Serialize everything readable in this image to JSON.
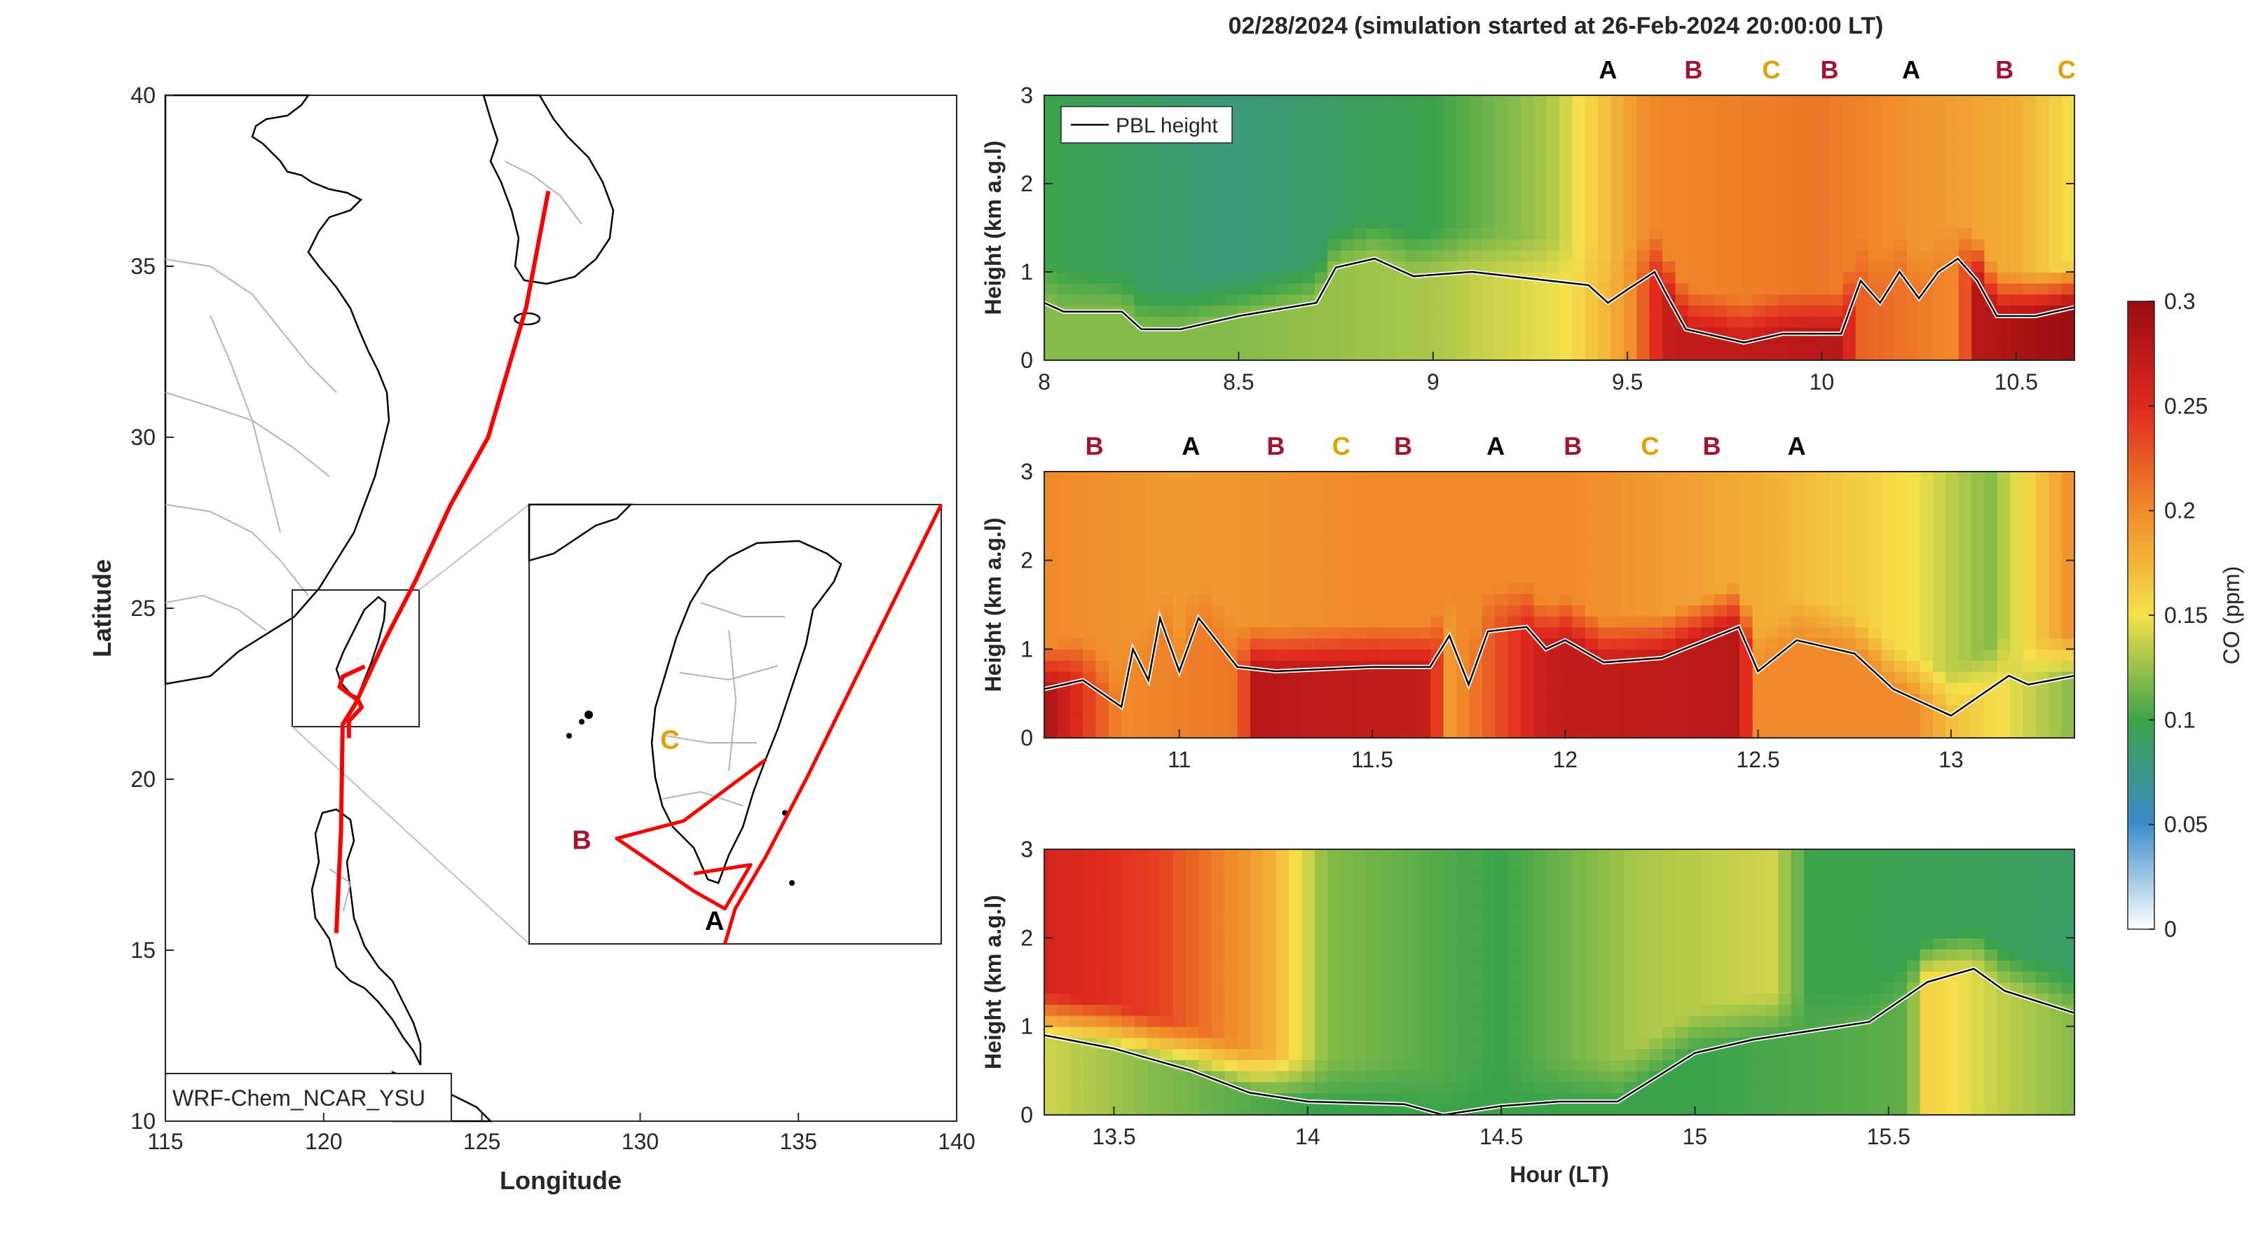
{
  "figure": {
    "title": "02/28/2024 (simulation started at 26-Feb-2024 20:00:00 LT)"
  },
  "map": {
    "xlabel": "Longitude",
    "ylabel": "Latitude",
    "xticks": [
      115,
      120,
      125,
      130,
      135,
      140
    ],
    "yticks": [
      10,
      15,
      20,
      25,
      30,
      35,
      40
    ],
    "xlim": [
      115,
      140
    ],
    "ylim": [
      10,
      40
    ],
    "model_label": "WRF-Chem_NCAR_YSU",
    "inset_lon": [
      119,
      123
    ],
    "inset_lat": [
      21.5,
      26.5
    ],
    "track_color": "#ff0000",
    "track": [
      [
        127.1,
        37.2
      ],
      [
        126.4,
        33.8
      ],
      [
        125.2,
        30.0
      ],
      [
        124.0,
        28.0
      ],
      [
        122.9,
        25.8
      ],
      [
        121.9,
        24.0
      ],
      [
        121.0,
        22.2
      ],
      [
        120.6,
        21.6
      ],
      [
        120.55,
        18.5
      ],
      [
        120.4,
        15.5
      ]
    ],
    "track_taiwan": [
      [
        121.3,
        23.3
      ],
      [
        120.6,
        23.0
      ],
      [
        120.5,
        22.7
      ],
      [
        121.1,
        22.3
      ],
      [
        121.2,
        22.1
      ],
      [
        120.8,
        21.7
      ],
      [
        120.8,
        21.2
      ]
    ],
    "inset_points": [
      {
        "label": "A",
        "lon": 120.8,
        "lat": 22.1,
        "color": "#000000"
      },
      {
        "label": "B",
        "lon": 119.85,
        "lat": 22.7,
        "color": "#a2142f"
      },
      {
        "label": "C",
        "lon": 120.4,
        "lat": 23.6,
        "color": "#e0a000"
      }
    ]
  },
  "colorbar": {
    "label": "CO (ppm)",
    "ticks": [
      0,
      0.05,
      0.1,
      0.15,
      0.2,
      0.25,
      0.3
    ],
    "range": [
      0,
      0.3
    ],
    "colors": [
      "#ffffff",
      "#3a8cc8",
      "#3aa24a",
      "#f5e14a",
      "#f08a2a",
      "#e02a1e",
      "#9a0c12"
    ]
  },
  "chart_data": [
    {
      "type": "heatmap",
      "title": "",
      "xlabel": "",
      "ylabel": "Height (km a.g.l)",
      "xlim": [
        8,
        10.65
      ],
      "ylim": [
        0,
        3
      ],
      "xticks": [
        8,
        8.5,
        9,
        9.5,
        10,
        10.5
      ],
      "yticks": [
        0,
        1,
        2,
        3
      ],
      "legend": "PBL height",
      "legend_position": "top-left",
      "markers": [
        {
          "label": "A",
          "x": 9.45
        },
        {
          "label": "B",
          "x": 9.67
        },
        {
          "label": "C",
          "x": 9.87
        },
        {
          "label": "B",
          "x": 10.02
        },
        {
          "label": "A",
          "x": 10.23
        },
        {
          "label": "B",
          "x": 10.47
        },
        {
          "label": "C",
          "x": 10.63
        }
      ],
      "surface_co": [
        [
          8.0,
          0.12
        ],
        [
          8.5,
          0.12
        ],
        [
          9.0,
          0.13
        ],
        [
          9.35,
          0.15
        ],
        [
          9.5,
          0.19
        ],
        [
          9.6,
          0.27
        ],
        [
          10.05,
          0.28
        ],
        [
          10.1,
          0.22
        ],
        [
          10.35,
          0.2
        ],
        [
          10.4,
          0.28
        ],
        [
          10.65,
          0.3
        ]
      ],
      "aloft_co": [
        [
          8.0,
          0.1
        ],
        [
          8.5,
          0.08
        ],
        [
          9.0,
          0.1
        ],
        [
          9.3,
          0.13
        ],
        [
          9.45,
          0.17
        ],
        [
          9.55,
          0.2
        ],
        [
          10.0,
          0.21
        ],
        [
          10.3,
          0.19
        ],
        [
          10.5,
          0.18
        ],
        [
          10.65,
          0.15
        ]
      ],
      "pbl_height": [
        [
          8.0,
          0.65
        ],
        [
          8.05,
          0.55
        ],
        [
          8.2,
          0.55
        ],
        [
          8.25,
          0.35
        ],
        [
          8.35,
          0.35
        ],
        [
          8.5,
          0.5
        ],
        [
          8.7,
          0.65
        ],
        [
          8.75,
          1.05
        ],
        [
          8.85,
          1.15
        ],
        [
          8.95,
          0.95
        ],
        [
          9.1,
          1.0
        ],
        [
          9.3,
          0.9
        ],
        [
          9.4,
          0.85
        ],
        [
          9.45,
          0.65
        ],
        [
          9.5,
          0.8
        ],
        [
          9.57,
          1.0
        ],
        [
          9.6,
          0.75
        ],
        [
          9.65,
          0.35
        ],
        [
          9.75,
          0.25
        ],
        [
          9.8,
          0.2
        ],
        [
          9.9,
          0.3
        ],
        [
          10.05,
          0.3
        ],
        [
          10.1,
          0.9
        ],
        [
          10.15,
          0.65
        ],
        [
          10.2,
          1.0
        ],
        [
          10.25,
          0.7
        ],
        [
          10.3,
          1.0
        ],
        [
          10.35,
          1.15
        ],
        [
          10.4,
          0.9
        ],
        [
          10.45,
          0.5
        ],
        [
          10.55,
          0.5
        ],
        [
          10.65,
          0.6
        ]
      ]
    },
    {
      "type": "heatmap",
      "title": "",
      "xlabel": "",
      "ylabel": "Height (km a.g.l)",
      "xlim": [
        10.65,
        13.32
      ],
      "ylim": [
        0,
        3
      ],
      "xticks": [
        11,
        11.5,
        12,
        12.5,
        13
      ],
      "yticks": [
        0,
        1,
        2,
        3
      ],
      "markers": [
        {
          "label": "B",
          "x": 10.78
        },
        {
          "label": "A",
          "x": 11.03
        },
        {
          "label": "B",
          "x": 11.25
        },
        {
          "label": "C",
          "x": 11.42
        },
        {
          "label": "B",
          "x": 11.58
        },
        {
          "label": "A",
          "x": 11.82
        },
        {
          "label": "B",
          "x": 12.02
        },
        {
          "label": "C",
          "x": 12.22
        },
        {
          "label": "B",
          "x": 12.38
        },
        {
          "label": "A",
          "x": 12.6
        }
      ],
      "surface_co": [
        [
          10.65,
          0.29
        ],
        [
          10.85,
          0.2
        ],
        [
          11.15,
          0.21
        ],
        [
          11.2,
          0.28
        ],
        [
          11.65,
          0.27
        ],
        [
          11.7,
          0.19
        ],
        [
          11.95,
          0.27
        ],
        [
          12.45,
          0.28
        ],
        [
          12.5,
          0.2
        ],
        [
          12.9,
          0.2
        ],
        [
          13.0,
          0.17
        ],
        [
          13.32,
          0.12
        ]
      ],
      "aloft_co": [
        [
          10.65,
          0.2
        ],
        [
          11.0,
          0.19
        ],
        [
          11.5,
          0.2
        ],
        [
          12.0,
          0.2
        ],
        [
          12.5,
          0.18
        ],
        [
          12.9,
          0.15
        ],
        [
          13.1,
          0.12
        ],
        [
          13.32,
          0.2
        ]
      ],
      "pbl_height": [
        [
          10.65,
          0.55
        ],
        [
          10.75,
          0.65
        ],
        [
          10.85,
          0.35
        ],
        [
          10.88,
          1.0
        ],
        [
          10.92,
          0.65
        ],
        [
          10.95,
          1.35
        ],
        [
          11.0,
          0.75
        ],
        [
          11.05,
          1.35
        ],
        [
          11.15,
          0.8
        ],
        [
          11.25,
          0.75
        ],
        [
          11.5,
          0.8
        ],
        [
          11.65,
          0.8
        ],
        [
          11.7,
          1.15
        ],
        [
          11.75,
          0.6
        ],
        [
          11.8,
          1.2
        ],
        [
          11.9,
          1.25
        ],
        [
          11.95,
          1.0
        ],
        [
          12.0,
          1.1
        ],
        [
          12.1,
          0.85
        ],
        [
          12.25,
          0.9
        ],
        [
          12.45,
          1.25
        ],
        [
          12.5,
          0.75
        ],
        [
          12.6,
          1.1
        ],
        [
          12.75,
          0.95
        ],
        [
          12.85,
          0.55
        ],
        [
          12.95,
          0.35
        ],
        [
          13.0,
          0.25
        ],
        [
          13.05,
          0.4
        ],
        [
          13.15,
          0.7
        ],
        [
          13.2,
          0.6
        ],
        [
          13.32,
          0.7
        ]
      ]
    },
    {
      "type": "heatmap",
      "title": "",
      "xlabel": "Hour (LT)",
      "ylabel": "Height (km a.g.l)",
      "xlim": [
        13.32,
        15.98
      ],
      "ylim": [
        0,
        3
      ],
      "xticks": [
        13.5,
        14,
        14.5,
        15,
        15.5
      ],
      "yticks": [
        0,
        1,
        2,
        3
      ],
      "markers": [],
      "surface_co": [
        [
          13.32,
          0.14
        ],
        [
          13.6,
          0.12
        ],
        [
          14.0,
          0.1
        ],
        [
          14.5,
          0.1
        ],
        [
          15.0,
          0.1
        ],
        [
          15.55,
          0.11
        ],
        [
          15.6,
          0.16
        ],
        [
          15.75,
          0.14
        ],
        [
          15.98,
          0.12
        ]
      ],
      "aloft_co": [
        [
          13.32,
          0.26
        ],
        [
          13.6,
          0.24
        ],
        [
          13.9,
          0.18
        ],
        [
          14.05,
          0.12
        ],
        [
          14.5,
          0.1
        ],
        [
          14.85,
          0.13
        ],
        [
          15.2,
          0.14
        ],
        [
          15.3,
          0.1
        ],
        [
          15.98,
          0.09
        ]
      ],
      "pbl_height": [
        [
          13.32,
          0.9
        ],
        [
          13.5,
          0.75
        ],
        [
          13.7,
          0.5
        ],
        [
          13.85,
          0.25
        ],
        [
          14.0,
          0.15
        ],
        [
          14.25,
          0.12
        ],
        [
          14.35,
          0.0
        ],
        [
          14.5,
          0.1
        ],
        [
          14.65,
          0.15
        ],
        [
          14.8,
          0.15
        ],
        [
          15.0,
          0.7
        ],
        [
          15.15,
          0.85
        ],
        [
          15.3,
          0.95
        ],
        [
          15.45,
          1.05
        ],
        [
          15.6,
          1.5
        ],
        [
          15.72,
          1.65
        ],
        [
          15.8,
          1.4
        ],
        [
          15.98,
          1.15
        ]
      ]
    }
  ]
}
